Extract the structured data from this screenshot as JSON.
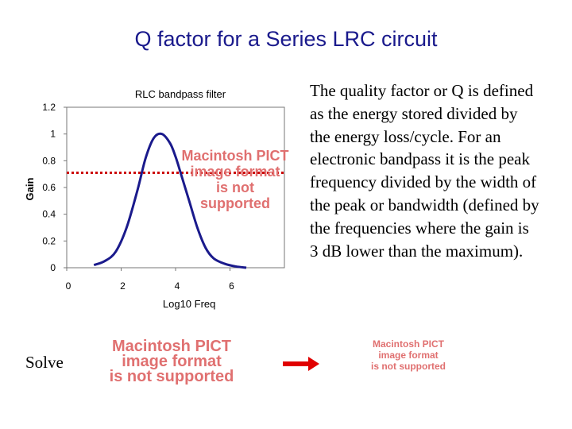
{
  "slide": {
    "title": "Q factor for a Series LRC circuit",
    "body_text": "The quality factor or Q is defined as the energy stored divided by the energy loss/cycle.  For an electronic bandpass it is the peak frequency divided by the width of the peak  or bandwidth (defined by the frequencies where the gain is 3 dB lower than the maximum).",
    "solve_label": "Solve"
  },
  "placeholders": {
    "pict_line1": "Macintosh PICT",
    "pict_line2": "image format",
    "pict_line3": "is not supported"
  },
  "colors": {
    "title": "#1a1a8c",
    "curve": "#1a1a8c",
    "threshold_line": "#cc0000",
    "arrow": "#e00000",
    "placeholder_text": "#e07070"
  },
  "chart_data": {
    "type": "line",
    "title": "RLC bandpass filter",
    "xlabel": "Log10 Freq",
    "ylabel": "Gain",
    "xlim": [
      0,
      8
    ],
    "ylim": [
      0,
      1.2
    ],
    "xticks": [
      0,
      2,
      4,
      6
    ],
    "yticks": [
      0,
      0.2,
      0.4,
      0.6,
      0.8,
      1,
      1.2
    ],
    "ytick_labels": [
      "0",
      "0.2",
      "0.4",
      "0.6",
      "0.8",
      "1",
      "1.2"
    ],
    "grid": false,
    "legend": "none",
    "series": [
      {
        "x": [
          1.0,
          1.4,
          1.8,
          2.2,
          2.6,
          2.9,
          3.2,
          3.5,
          3.8,
          4.0,
          4.2,
          4.5,
          4.8,
          5.1,
          5.4,
          5.8,
          6.2,
          6.6
        ],
        "values": [
          0.02,
          0.05,
          0.12,
          0.3,
          0.58,
          0.82,
          0.97,
          1.0,
          0.93,
          0.83,
          0.7,
          0.5,
          0.3,
          0.15,
          0.07,
          0.03,
          0.01,
          0.0
        ]
      }
    ],
    "annotations": [
      {
        "type": "hline",
        "y": 0.71,
        "style": "dotted",
        "color": "#cc0000"
      }
    ]
  }
}
